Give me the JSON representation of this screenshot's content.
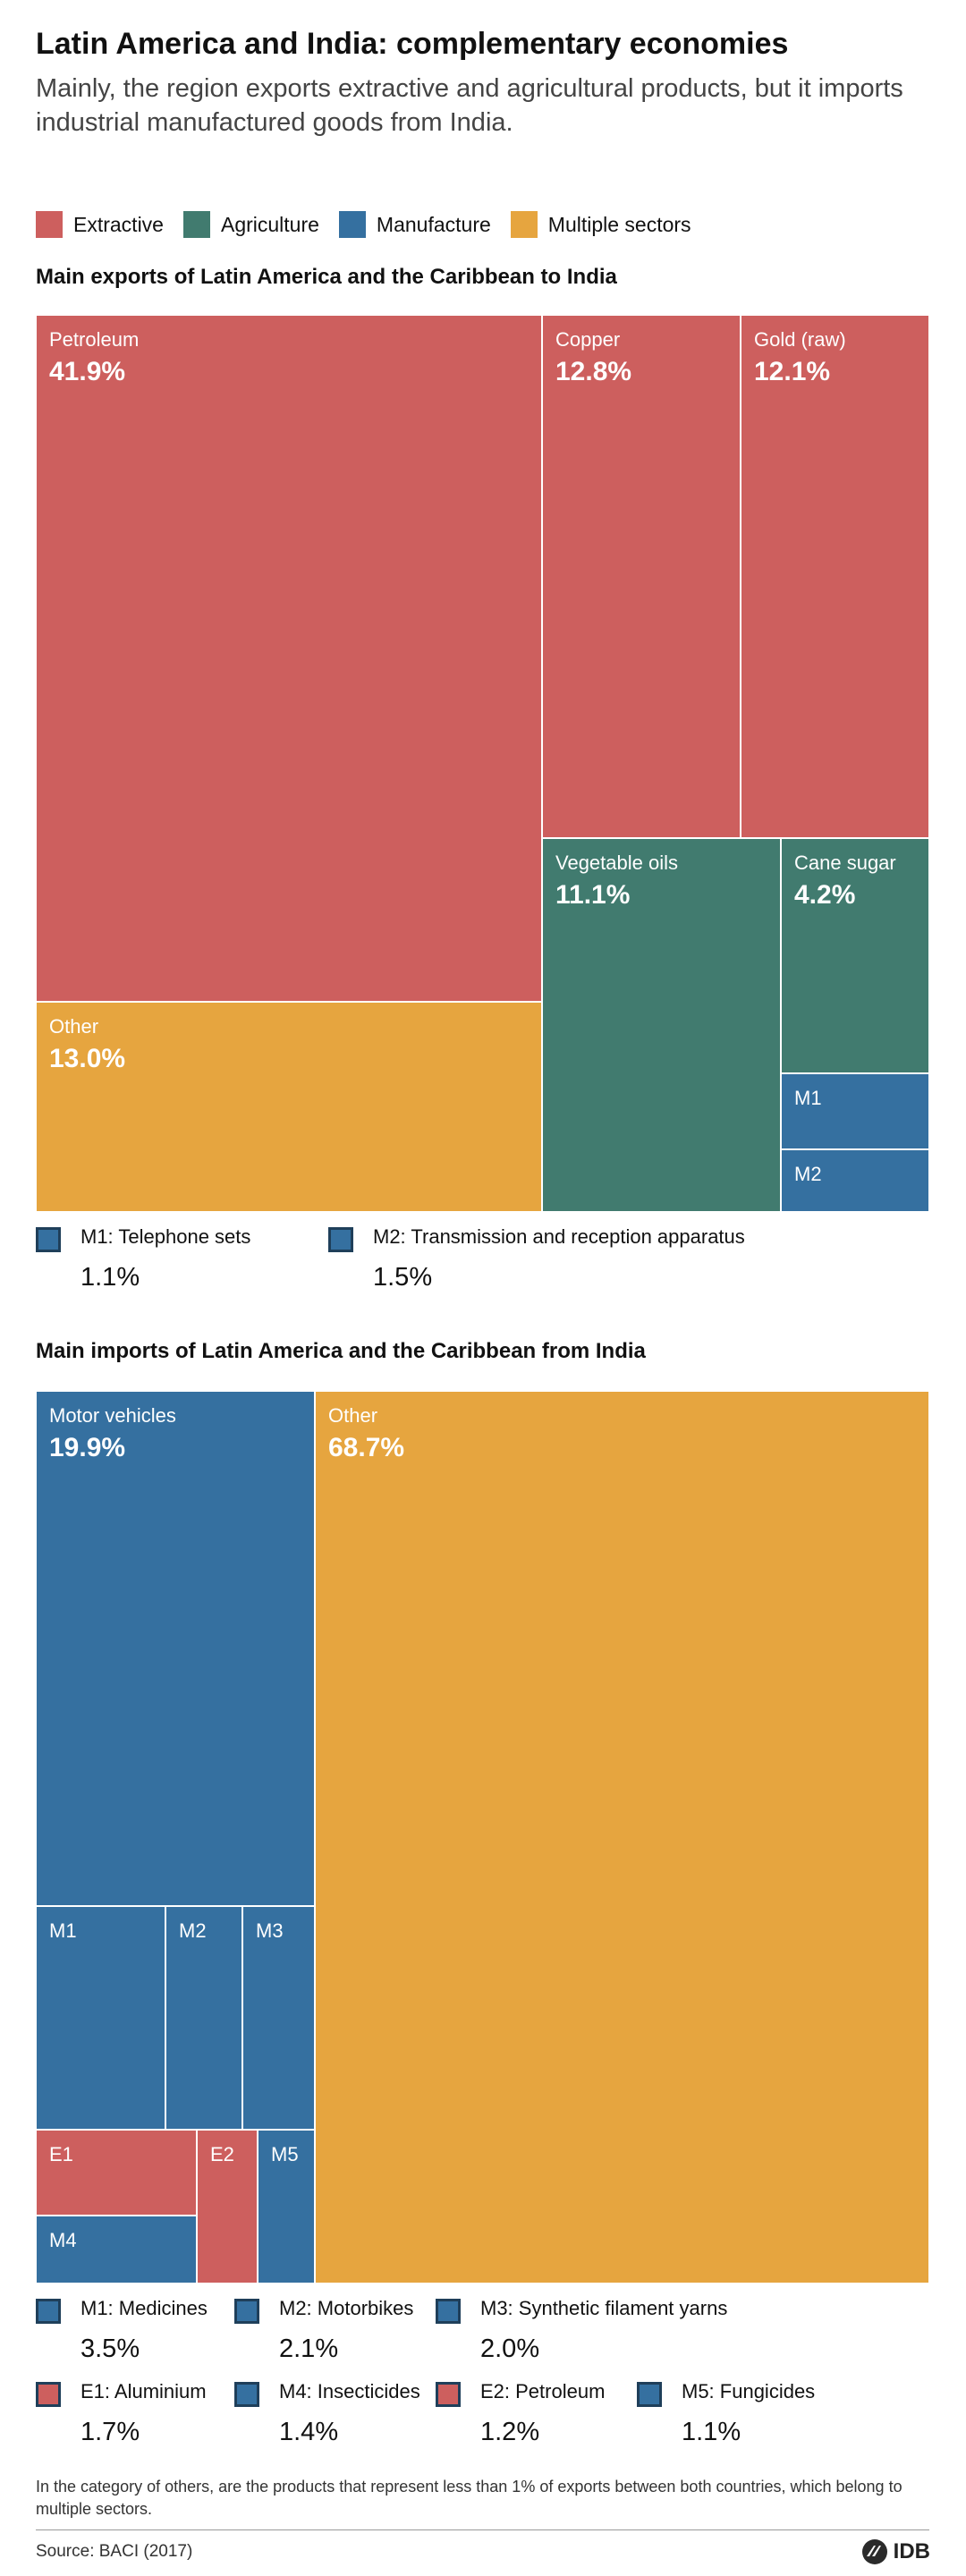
{
  "title": "Latin America and India: complementary economies",
  "subtitle": "Mainly, the region exports extractive and agricultural products, but it imports industrial manufactured goods from India.",
  "colors": {
    "extractive": "#cd5f5e",
    "agriculture": "#417b6f",
    "manufacture": "#3570a0",
    "multiple": "#e6a53f"
  },
  "legend": [
    {
      "label": "Extractive",
      "color": "#cd5f5e"
    },
    {
      "label": "Agriculture",
      "color": "#417b6f"
    },
    {
      "label": "Manufacture",
      "color": "#3570a0"
    },
    {
      "label": "Multiple sectors",
      "color": "#e6a53f"
    }
  ],
  "chart_data": [
    {
      "type": "treemap",
      "title": "Main exports of Latin America and the Caribbean to India",
      "unit": "% of exports",
      "items": [
        {
          "label": "Petroleum",
          "value": 41.9,
          "display": "41.9%",
          "sector": "extractive"
        },
        {
          "label": "Copper",
          "value": 12.8,
          "display": "12.8%",
          "sector": "extractive"
        },
        {
          "label": "Gold (raw)",
          "value": 12.1,
          "display": "12.1%",
          "sector": "extractive"
        },
        {
          "label": "Other",
          "value": 13.0,
          "display": "13.0%",
          "sector": "multiple"
        },
        {
          "label": "Vegetable oils",
          "value": 11.1,
          "display": "11.1%",
          "sector": "agriculture"
        },
        {
          "label": "Cane sugar",
          "value": 4.2,
          "display": "4.2%",
          "sector": "agriculture"
        },
        {
          "label": "M1",
          "value": 1.1,
          "sector": "manufacture"
        },
        {
          "label": "M2",
          "value": 1.5,
          "sector": "manufacture"
        }
      ],
      "keys": [
        {
          "code": "M1",
          "text": "M1: Telephone sets",
          "value": 1.1,
          "display": "1.1%",
          "sector": "manufacture"
        },
        {
          "code": "M2",
          "text": "M2: Transmission and reception apparatus",
          "value": 1.5,
          "display": "1.5%",
          "sector": "manufacture"
        }
      ]
    },
    {
      "type": "treemap",
      "title": "Main imports of Latin America and the Caribbean from India",
      "unit": "% of imports",
      "items": [
        {
          "label": "Motor vehicles",
          "value": 19.9,
          "display": "19.9%",
          "sector": "manufacture"
        },
        {
          "label": "Other",
          "value": 68.7,
          "display": "68.7%",
          "sector": "multiple"
        },
        {
          "label": "M1",
          "value": 3.5,
          "sector": "manufacture"
        },
        {
          "label": "M2",
          "value": 2.1,
          "sector": "manufacture"
        },
        {
          "label": "M3",
          "value": 2.0,
          "sector": "manufacture"
        },
        {
          "label": "E1",
          "value": 1.7,
          "sector": "extractive"
        },
        {
          "label": "E2",
          "value": 1.2,
          "sector": "extractive"
        },
        {
          "label": "M5",
          "value": 1.1,
          "sector": "manufacture"
        },
        {
          "label": "M4",
          "value": 1.4,
          "sector": "manufacture"
        }
      ],
      "keys": [
        {
          "code": "M1",
          "text": "M1: Medicines",
          "value": 3.5,
          "display": "3.5%",
          "sector": "manufacture"
        },
        {
          "code": "M2",
          "text": "M2: Motorbikes",
          "value": 2.1,
          "display": "2.1%",
          "sector": "manufacture"
        },
        {
          "code": "M3",
          "text": "M3: Synthetic filament yarns",
          "value": 2.0,
          "display": "2.0%",
          "sector": "manufacture"
        },
        {
          "code": "E1",
          "text": "E1: Aluminium",
          "value": 1.7,
          "display": "1.7%",
          "sector": "extractive"
        },
        {
          "code": "M4",
          "text": "M4: Insecticides",
          "value": 1.4,
          "display": "1.4%",
          "sector": "manufacture"
        },
        {
          "code": "E2",
          "text": "E2: Petroleum",
          "value": 1.2,
          "display": "1.2%",
          "sector": "extractive"
        },
        {
          "code": "M5",
          "text": "M5: Fungicides",
          "value": 1.1,
          "display": "1.1%",
          "sector": "manufacture"
        }
      ]
    }
  ],
  "note": "In the category of others, are the products that represent less than 1% of exports between both countries, which belong to multiple sectors.",
  "source": "Source: BACI (2017)",
  "logo": "IDB"
}
